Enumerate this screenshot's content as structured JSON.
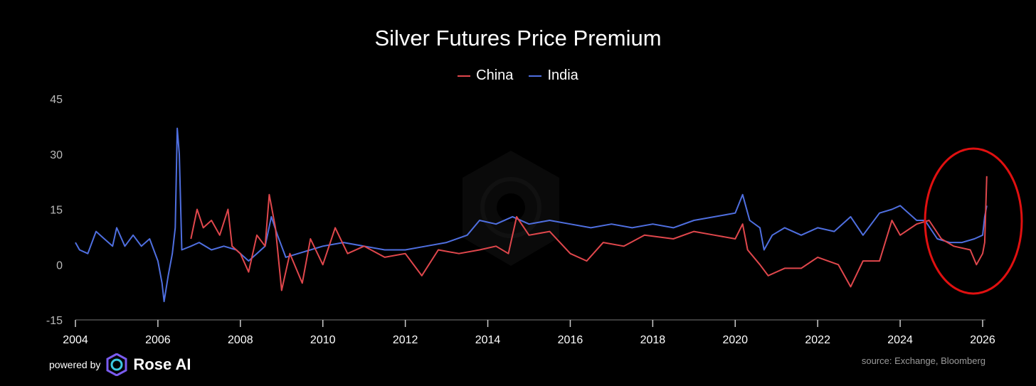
{
  "chart_data": {
    "type": "line",
    "title": "Silver Futures Price Premium",
    "xlabel": "",
    "ylabel": "",
    "xlim": [
      2004,
      2026
    ],
    "ylim": [
      -15,
      45
    ],
    "yticks": [
      "45",
      "30",
      "15",
      "0",
      "-15"
    ],
    "xticks": [
      "2004",
      "2006",
      "2008",
      "2010",
      "2012",
      "2014",
      "2016",
      "2018",
      "2020",
      "2022",
      "2024",
      "2026"
    ],
    "grid": false,
    "legend_position": "top-center",
    "series": [
      {
        "name": "China",
        "color": "#e0474c",
        "x": [
          2006.8,
          2006.95,
          2007.1,
          2007.3,
          2007.5,
          2007.7,
          2007.8,
          2008.0,
          2008.2,
          2008.4,
          2008.6,
          2008.7,
          2008.85,
          2009.0,
          2009.2,
          2009.5,
          2009.7,
          2010.0,
          2010.3,
          2010.6,
          2011.0,
          2011.5,
          2012.0,
          2012.4,
          2012.8,
          2013.3,
          2013.8,
          2014.2,
          2014.5,
          2014.7,
          2015.0,
          2015.5,
          2016.0,
          2016.4,
          2016.8,
          2017.3,
          2017.8,
          2018.5,
          2019.0,
          2019.5,
          2020.0,
          2020.18,
          2020.3,
          2020.6,
          2020.8,
          2021.2,
          2021.6,
          2022.0,
          2022.5,
          2022.8,
          2023.1,
          2023.5,
          2023.8,
          2024.0,
          2024.4,
          2024.7,
          2025.0,
          2025.3,
          2025.7,
          2025.85,
          2026.0,
          2026.05,
          2026.1
        ],
        "y": [
          7,
          15,
          10,
          12,
          8,
          15,
          5,
          3,
          -2,
          8,
          5,
          19,
          10,
          -7,
          3,
          -5,
          7,
          0,
          10,
          3,
          5,
          2,
          3,
          -3,
          4,
          3,
          4,
          5,
          3,
          13,
          8,
          9,
          3,
          1,
          6,
          5,
          8,
          7,
          9,
          8,
          7,
          11,
          4,
          0,
          -3,
          -1,
          -1,
          2,
          0,
          -6,
          1,
          1,
          12,
          8,
          11,
          12,
          7,
          5,
          4,
          0,
          3,
          6,
          24
        ]
      },
      {
        "name": "India",
        "color": "#4f6fe0",
        "x": [
          2004.0,
          2004.1,
          2004.3,
          2004.5,
          2004.7,
          2004.9,
          2005.0,
          2005.2,
          2005.4,
          2005.6,
          2005.8,
          2006.0,
          2006.1,
          2006.15,
          2006.25,
          2006.35,
          2006.42,
          2006.47,
          2006.52,
          2006.58,
          2006.8,
          2007.0,
          2007.3,
          2007.6,
          2007.9,
          2008.2,
          2008.4,
          2008.6,
          2008.75,
          2008.9,
          2009.1,
          2009.4,
          2009.7,
          2010.0,
          2010.5,
          2011.0,
          2011.5,
          2012.0,
          2012.5,
          2013.0,
          2013.5,
          2013.8,
          2014.2,
          2014.6,
          2015.0,
          2015.5,
          2016.0,
          2016.5,
          2017.0,
          2017.5,
          2018.0,
          2018.5,
          2019.0,
          2019.5,
          2020.0,
          2020.18,
          2020.35,
          2020.6,
          2020.7,
          2020.9,
          2021.2,
          2021.6,
          2022.0,
          2022.4,
          2022.8,
          2023.1,
          2023.5,
          2023.8,
          2024.0,
          2024.4,
          2024.6,
          2024.9,
          2025.2,
          2025.5,
          2025.8,
          2026.0,
          2026.05,
          2026.1
        ],
        "y": [
          6,
          4,
          3,
          9,
          7,
          5,
          10,
          5,
          8,
          5,
          7,
          1,
          -5,
          -10,
          -3,
          3,
          10,
          37,
          30,
          4,
          5,
          6,
          4,
          5,
          4,
          1,
          3,
          5,
          13,
          8,
          2,
          3,
          4,
          5,
          6,
          5,
          4,
          4,
          5,
          6,
          8,
          12,
          11,
          13,
          11,
          12,
          11,
          10,
          11,
          10,
          11,
          10,
          12,
          13,
          14,
          19,
          12,
          10,
          4,
          8,
          10,
          8,
          10,
          9,
          13,
          8,
          14,
          15,
          16,
          12,
          12,
          7,
          6,
          6,
          7,
          8,
          13,
          16
        ]
      }
    ],
    "annotation": "red circle highlighting 2025-2026 spike"
  },
  "footer": {
    "powered_by": "powered by",
    "brand": "Rose AI",
    "source": "source: Exchange, Bloomberg"
  },
  "colors": {
    "background": "#000000",
    "annotation": "#e01010"
  }
}
